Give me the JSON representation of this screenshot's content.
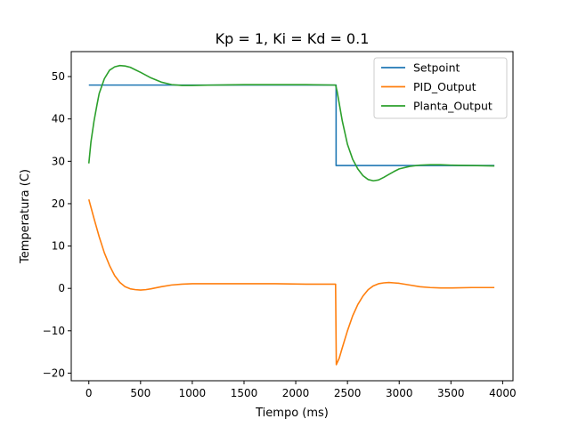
{
  "chart_data": {
    "type": "line",
    "title": "Kp = 1, Ki = Kd = 0.1",
    "xlabel": "Tiempo (ms)",
    "ylabel": "Temperatura (C)",
    "xlim": [
      -170,
      4100
    ],
    "ylim": [
      -21.8,
      55.9
    ],
    "xticks": [
      0,
      500,
      1000,
      1500,
      2000,
      2500,
      3000,
      3500,
      4000
    ],
    "yticks": [
      -20,
      -10,
      0,
      10,
      20,
      30,
      40,
      50
    ],
    "grid": false,
    "legend_position": "top-right",
    "series": [
      {
        "name": "Setpoint",
        "color": "#1f77b4",
        "x": [
          0,
          2390,
          2390,
          3920
        ],
        "y": [
          48,
          48,
          29,
          29
        ]
      },
      {
        "name": "PID_Output",
        "color": "#ff7f0e",
        "x": [
          0,
          50,
          100,
          150,
          200,
          250,
          300,
          350,
          400,
          450,
          500,
          550,
          600,
          700,
          800,
          900,
          1000,
          1200,
          1500,
          1800,
          2100,
          2385,
          2392,
          2420,
          2450,
          2500,
          2550,
          2600,
          2650,
          2700,
          2750,
          2800,
          2850,
          2900,
          2950,
          3000,
          3100,
          3200,
          3300,
          3400,
          3500,
          3700,
          3920
        ],
        "y": [
          21,
          16.5,
          12.2,
          8.4,
          5.4,
          3.0,
          1.4,
          0.4,
          -0.1,
          -0.3,
          -0.4,
          -0.3,
          -0.1,
          0.4,
          0.8,
          1.0,
          1.1,
          1.1,
          1.1,
          1.1,
          1.0,
          1.0,
          -18,
          -16.5,
          -14.0,
          -10.0,
          -6.5,
          -3.8,
          -1.8,
          -0.3,
          0.6,
          1.1,
          1.3,
          1.4,
          1.3,
          1.2,
          0.8,
          0.4,
          0.2,
          0.1,
          0.1,
          0.2,
          0.2
        ]
      },
      {
        "name": "Planta_Output",
        "color": "#2ca02c",
        "x": [
          0,
          20,
          50,
          80,
          100,
          150,
          200,
          250,
          300,
          350,
          400,
          450,
          500,
          600,
          700,
          800,
          900,
          1000,
          1200,
          1500,
          1800,
          2100,
          2385,
          2400,
          2450,
          2500,
          2550,
          2600,
          2650,
          2700,
          2750,
          2800,
          2850,
          2900,
          2950,
          3000,
          3100,
          3200,
          3300,
          3400,
          3500,
          3700,
          3920
        ],
        "y": [
          29.5,
          34.5,
          39.5,
          43.5,
          46.0,
          49.5,
          51.5,
          52.3,
          52.6,
          52.5,
          52.2,
          51.6,
          51.0,
          49.7,
          48.7,
          48.1,
          47.9,
          47.9,
          48.0,
          48.1,
          48.1,
          48.1,
          48.0,
          46.5,
          39.5,
          34.0,
          30.5,
          28.2,
          26.6,
          25.7,
          25.4,
          25.6,
          26.2,
          26.9,
          27.6,
          28.2,
          28.8,
          29.1,
          29.2,
          29.2,
          29.1,
          29.0,
          28.9
        ]
      }
    ]
  }
}
